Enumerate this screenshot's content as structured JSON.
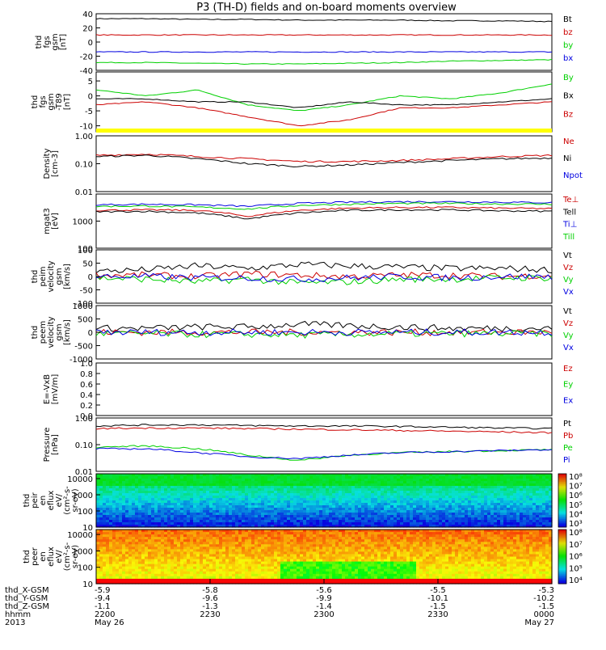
{
  "title": "P3 (TH-D) fields and on-board moments overview",
  "colors": {
    "black": "#000000",
    "red": "#cc0000",
    "green": "#00d000",
    "blue": "#0000e0",
    "yellow": "#ffff00"
  },
  "time_axis": {
    "ticks": [
      "2200",
      "2230",
      "2300",
      "2330",
      "0000"
    ],
    "start_label": "May 26",
    "end_label": "May 27",
    "year": "2013",
    "row_labels": [
      "thd_X-GSM",
      "thd_Y-GSM",
      "thd_Z-GSM",
      "hhmm",
      "2013"
    ],
    "x_gsm": [
      "-5.9",
      "-5.8",
      "-5.6",
      "-5.5",
      "-5.3"
    ],
    "y_gsm": [
      "-9.4",
      "-9.6",
      "-9.9",
      "-10.1",
      "-10.2"
    ],
    "z_gsm": [
      "-1.1",
      "-1.3",
      "-1.4",
      "-1.5",
      "-1.5"
    ]
  },
  "chart_data": [
    {
      "type": "line",
      "ylabel": [
        "thd",
        "fgs",
        "gsm",
        "[nT]"
      ],
      "yticks": [
        "40",
        "20",
        "0",
        "-20",
        "-40"
      ],
      "ylim": [
        -40,
        40
      ],
      "series": [
        {
          "name": "Bt",
          "color": "#000000",
          "values": [
            33,
            33,
            32,
            32,
            31,
            31,
            31,
            30,
            30,
            29
          ]
        },
        {
          "name": "bz",
          "color": "#cc0000",
          "values": [
            10,
            10,
            10,
            10,
            10,
            10,
            10,
            10,
            10,
            10
          ]
        },
        {
          "name": "by",
          "color": "#00d000",
          "values": [
            -29,
            -29,
            -30,
            -31,
            -31,
            -30,
            -29,
            -27,
            -26,
            -25
          ]
        },
        {
          "name": "bx",
          "color": "#0000e0",
          "values": [
            -14,
            -14,
            -14,
            -14,
            -14,
            -14,
            -14,
            -14,
            -14,
            -14
          ]
        }
      ]
    },
    {
      "type": "line",
      "ylabel": [
        "thd",
        "fgs",
        "gsm",
        "-T89",
        "[nT]"
      ],
      "yticks": [
        "5",
        "0",
        "-5",
        "-10"
      ],
      "ylim": [
        -12,
        8
      ],
      "series": [
        {
          "name": "By",
          "color": "#00d000",
          "values": [
            2,
            0,
            2,
            -3,
            -5,
            -3,
            0,
            -1,
            1,
            4
          ]
        },
        {
          "name": "Bx",
          "color": "#000000",
          "values": [
            -1,
            -1,
            -2,
            -2,
            -4,
            -2,
            -3,
            -3,
            -2,
            -1
          ]
        },
        {
          "name": "Bz",
          "color": "#cc0000",
          "values": [
            -3,
            -2,
            -4,
            -7,
            -10,
            -8,
            -4,
            -4,
            -3,
            -2
          ]
        }
      ]
    },
    {
      "type": "line",
      "ylabel": [
        "Density",
        "[cm-3]"
      ],
      "yticks": [
        "1.00",
        "0.10",
        "0.01"
      ],
      "ylim": [
        0.01,
        1.0
      ],
      "log": true,
      "series": [
        {
          "name": "Ne",
          "color": "#cc0000",
          "values": [
            0.2,
            0.22,
            0.18,
            0.15,
            0.12,
            0.12,
            0.13,
            0.15,
            0.18,
            0.2
          ]
        },
        {
          "name": "Ni",
          "color": "#000000",
          "values": [
            0.18,
            0.2,
            0.15,
            0.1,
            0.08,
            0.09,
            0.11,
            0.13,
            0.15,
            0.16
          ]
        },
        {
          "name": "Npot",
          "color": "#0000e0",
          "values": []
        }
      ]
    },
    {
      "type": "line",
      "ylabel": [
        "mgat3",
        "[eV]"
      ],
      "yticks": [
        "1000",
        "100"
      ],
      "ylim": [
        100,
        10000
      ],
      "log": true,
      "series": [
        {
          "name": "Te⊥",
          "color": "#cc0000",
          "values": [
            2500,
            2600,
            2500,
            1500,
            2500,
            3000,
            3200,
            3200,
            3000,
            2900
          ]
        },
        {
          "name": "Tell",
          "color": "#000000",
          "values": [
            2200,
            2300,
            2000,
            1200,
            2000,
            2500,
            2600,
            2600,
            2400,
            2300
          ]
        },
        {
          "name": "Ti⊥",
          "color": "#0000e0",
          "values": [
            4000,
            4200,
            4000,
            3500,
            4500,
            5000,
            5200,
            5200,
            5000,
            4800
          ]
        },
        {
          "name": "Till",
          "color": "#00d000",
          "values": [
            3500,
            3600,
            3300,
            2800,
            3800,
            4200,
            4500,
            4500,
            4300,
            4200
          ]
        }
      ]
    },
    {
      "type": "line",
      "ylabel": [
        "thd",
        "peim",
        "velocity",
        "gsm",
        "[km/s]"
      ],
      "yticks": [
        "100",
        "50",
        "0",
        "-50",
        "-100"
      ],
      "ylim": [
        -100,
        100
      ],
      "series": [
        {
          "name": "Vt",
          "color": "#000000",
          "values": [
            20,
            25,
            40,
            30,
            45,
            40,
            35,
            30,
            30,
            25
          ]
        },
        {
          "name": "Vz",
          "color": "#cc0000",
          "values": [
            5,
            5,
            0,
            10,
            5,
            0,
            5,
            5,
            0,
            5
          ]
        },
        {
          "name": "Vy",
          "color": "#00d000",
          "values": [
            -5,
            -10,
            -20,
            -10,
            -25,
            -20,
            -10,
            -10,
            -5,
            -5
          ]
        },
        {
          "name": "Vx",
          "color": "#0000e0",
          "values": [
            0,
            0,
            -5,
            -5,
            -10,
            -5,
            0,
            -5,
            0,
            0
          ]
        }
      ]
    },
    {
      "type": "line",
      "ylabel": [
        "thd",
        "peem",
        "velocity",
        "gsm",
        "[km/s]"
      ],
      "yticks": [
        "1000",
        "500",
        "0",
        "-500",
        "-1000"
      ],
      "ylim": [
        -1000,
        1000
      ],
      "series": [
        {
          "name": "Vt",
          "color": "#000000",
          "values": [
            150,
            150,
            200,
            200,
            300,
            250,
            200,
            150,
            150,
            150
          ]
        },
        {
          "name": "Vz",
          "color": "#cc0000",
          "values": [
            0,
            0,
            0,
            0,
            0,
            0,
            0,
            0,
            0,
            0
          ]
        },
        {
          "name": "Vy",
          "color": "#00d000",
          "values": [
            -50,
            -50,
            -80,
            -80,
            -100,
            -80,
            -60,
            -50,
            -50,
            -50
          ]
        },
        {
          "name": "Vx",
          "color": "#0000e0",
          "values": [
            0,
            0,
            0,
            0,
            0,
            0,
            0,
            0,
            0,
            0
          ]
        }
      ]
    },
    {
      "type": "line",
      "ylabel": [
        "E=-VxB",
        "[mV/m]"
      ],
      "yticks": [
        "1.0",
        "0.8",
        "0.6",
        "0.4",
        "0.2",
        "0.0"
      ],
      "ylim": [
        0,
        1
      ],
      "series": [
        {
          "name": "Ez",
          "color": "#cc0000",
          "values": []
        },
        {
          "name": "Ey",
          "color": "#00d000",
          "values": []
        },
        {
          "name": "Ex",
          "color": "#0000e0",
          "values": []
        }
      ]
    },
    {
      "type": "line",
      "ylabel": [
        "Pressure",
        "[nPa]"
      ],
      "yticks": [
        "1.00",
        "0.10",
        "0.01"
      ],
      "ylim": [
        0.01,
        1.0
      ],
      "log": true,
      "series": [
        {
          "name": "Pt",
          "color": "#000000",
          "values": [
            0.5,
            0.55,
            0.55,
            0.52,
            0.5,
            0.5,
            0.48,
            0.45,
            0.42,
            0.4
          ]
        },
        {
          "name": "Pb",
          "color": "#cc0000",
          "values": [
            0.4,
            0.42,
            0.42,
            0.4,
            0.38,
            0.36,
            0.34,
            0.32,
            0.3,
            0.28
          ]
        },
        {
          "name": "Pe",
          "color": "#00d000",
          "values": [
            0.08,
            0.09,
            0.07,
            0.04,
            0.025,
            0.04,
            0.05,
            0.055,
            0.06,
            0.065
          ]
        },
        {
          "name": "Pi",
          "color": "#0000e0",
          "values": [
            0.07,
            0.07,
            0.05,
            0.035,
            0.03,
            0.04,
            0.05,
            0.055,
            0.06,
            0.065
          ]
        }
      ]
    },
    {
      "type": "heatmap",
      "ylabel": [
        "thd",
        "peir",
        "en",
        "eflux",
        "eV/",
        "(cm²-s-",
        "sr-eV)"
      ],
      "yticks": [
        "10000",
        "1000",
        "100",
        "10"
      ],
      "ylim": [
        10,
        20000
      ],
      "log": true,
      "colorbar": {
        "labels": [
          "10⁸",
          "10⁷",
          "10⁶",
          "10⁵",
          "10⁴",
          "10³"
        ],
        "range": [
          3,
          8
        ]
      }
    },
    {
      "type": "heatmap",
      "ylabel": [
        "thd",
        "peer",
        "en",
        "eflux",
        "eV/",
        "(cm²-s-",
        "sr-eV)"
      ],
      "yticks": [
        "10000",
        "1000",
        "100",
        "10"
      ],
      "ylim": [
        10,
        20000
      ],
      "log": true,
      "colorbar": {
        "labels": [
          "10⁸",
          "10⁷",
          "10⁶",
          "10⁵",
          "10⁴"
        ],
        "range": [
          3.5,
          8.5
        ]
      }
    }
  ]
}
